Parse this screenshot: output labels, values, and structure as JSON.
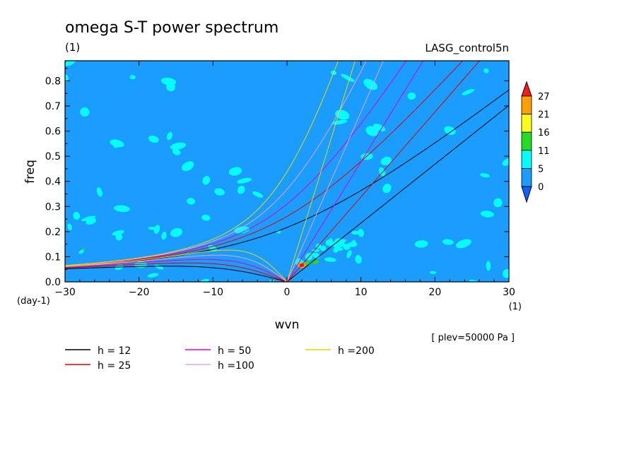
{
  "chart_data": {
    "type": "heatmap",
    "title": "omega S-T power spectrum",
    "subtitle_left": "(1)",
    "subtitle_right": "LASG_control5n",
    "xlabel": "wvn",
    "ylabel": "freq",
    "x_units": "(1)",
    "y_units": "(day-1)",
    "xlim": [
      -30,
      30
    ],
    "ylim": [
      0,
      0.88
    ],
    "x_ticks": [
      -30,
      -20,
      -10,
      0,
      10,
      20,
      30
    ],
    "x_tick_labels": [
      "−30",
      "−20",
      "−10",
      "0",
      "10",
      "20",
      "30"
    ],
    "y_ticks": [
      0.0,
      0.1,
      0.2,
      0.3,
      0.4,
      0.5,
      0.6,
      0.7,
      0.8
    ],
    "y_tick_labels": [
      "0.0",
      "0.1",
      "0.2",
      "0.3",
      "0.4",
      "0.5",
      "0.6",
      "0.7",
      "0.8"
    ],
    "annotation": "[ plev=50000 Pa ]",
    "colorbar": {
      "levels": [
        "27",
        "21",
        "16",
        "11",
        "5",
        "0"
      ],
      "colors": [
        "#ff1a1a",
        "#ffa000",
        "#ffff1a",
        "#22dd22",
        "#00ffff",
        "#1a9dff",
        "#1060ff"
      ]
    },
    "field_colors": {
      "background": "#1a9dff",
      "low": "#00ffff",
      "mid": "#22dd22",
      "high": "#ffa000",
      "peak": "#ff1a1a"
    },
    "dispersion_curves": [
      {
        "label": "h = 12",
        "h": 12,
        "color": "#000000"
      },
      {
        "label": "h = 25",
        "h": 25,
        "color": "#e00000"
      },
      {
        "label": "h = 50",
        "h": 50,
        "color": "#e000c0"
      },
      {
        "label": "h =100",
        "h": 100,
        "color": "#e8a0e0"
      },
      {
        "label": "h =200",
        "h": 200,
        "color": "#e8d800"
      }
    ]
  }
}
